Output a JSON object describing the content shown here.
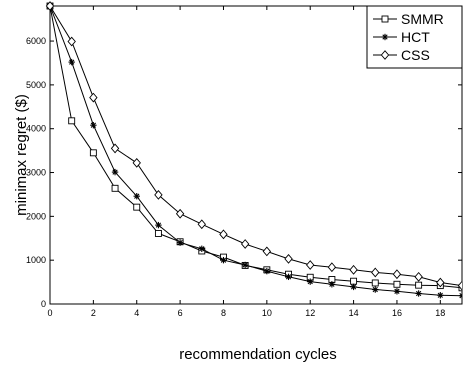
{
  "chart_data": {
    "type": "line",
    "title": "",
    "xlabel": "recommendation cycles",
    "ylabel": "minimax regret ($)",
    "xlim": [
      0,
      19
    ],
    "ylim": [
      0,
      6800
    ],
    "x_ticks": [
      0,
      2,
      4,
      6,
      8,
      10,
      12,
      14,
      16,
      18
    ],
    "y_ticks": [
      0,
      1000,
      2000,
      3000,
      4000,
      5000,
      6000
    ],
    "grid": false,
    "legend_position": "top-right",
    "x": [
      0,
      1,
      2,
      3,
      4,
      5,
      6,
      7,
      8,
      9,
      10,
      11,
      12,
      13,
      14,
      15,
      16,
      17,
      18,
      19
    ],
    "series": [
      {
        "name": "SMMR",
        "marker": "square",
        "color": "#000000",
        "values": [
          6800,
          4180,
          3450,
          2640,
          2210,
          1610,
          1420,
          1210,
          1070,
          880,
          780,
          680,
          610,
          560,
          520,
          480,
          450,
          430,
          420,
          370
        ]
      },
      {
        "name": "HCT",
        "marker": "star",
        "color": "#000000",
        "values": [
          6800,
          5520,
          4080,
          3010,
          2460,
          1800,
          1400,
          1260,
          1000,
          890,
          750,
          620,
          510,
          450,
          390,
          330,
          290,
          240,
          200,
          190
        ]
      },
      {
        "name": "CSS",
        "marker": "diamond",
        "color": "#000000",
        "values": [
          6800,
          5990,
          4710,
          3550,
          3220,
          2490,
          2060,
          1820,
          1590,
          1370,
          1200,
          1030,
          890,
          840,
          780,
          720,
          680,
          620,
          490,
          420
        ]
      }
    ]
  }
}
